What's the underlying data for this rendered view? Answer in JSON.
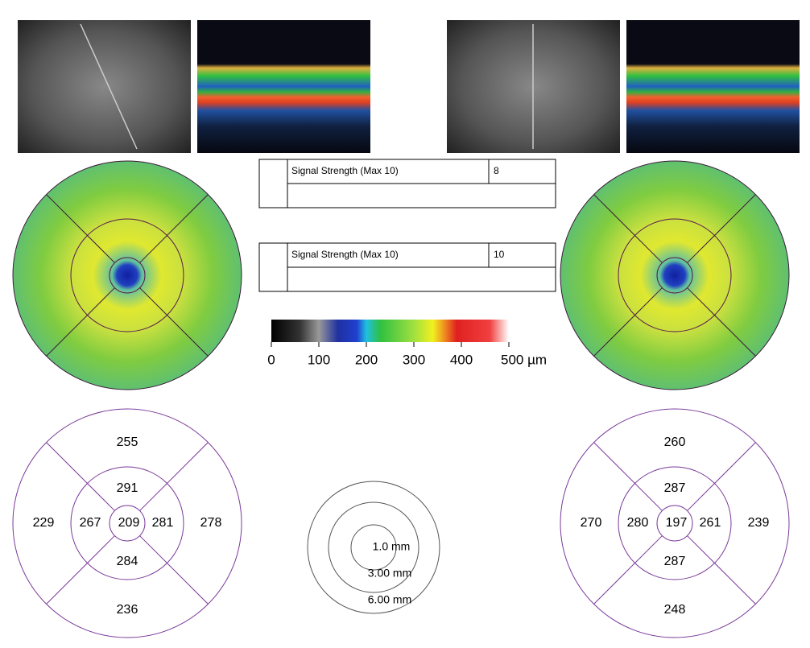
{
  "signal_boxes": [
    {
      "label": "Signal Strength (Max 10)",
      "value": 8
    },
    {
      "label": "Signal Strength (Max 10)",
      "value": 10
    }
  ],
  "colorbar": {
    "lim": [
      0,
      500
    ],
    "ticks": [
      0,
      100,
      200,
      300,
      400,
      {
        "value": 500,
        "label": "500 µm"
      }
    ]
  },
  "eyes": [
    {
      "superior_outer": 255,
      "superior_inner": 291,
      "temporal_outer": 229,
      "temporal_inner": 267,
      "center": 209,
      "nasal_inner": 281,
      "nasal_outer": 278,
      "inferior_inner": 284,
      "inferior_outer": 236
    },
    {
      "superior_outer": 260,
      "superior_inner": 287,
      "temporal_outer": 270,
      "temporal_inner": 280,
      "center": 197,
      "nasal_inner": 261,
      "nasal_outer": 239,
      "inferior_inner": 287,
      "inferior_outer": 248
    }
  ],
  "diameter_legend": [
    "1.0 mm",
    "3.00 mm",
    "6.00 mm"
  ]
}
